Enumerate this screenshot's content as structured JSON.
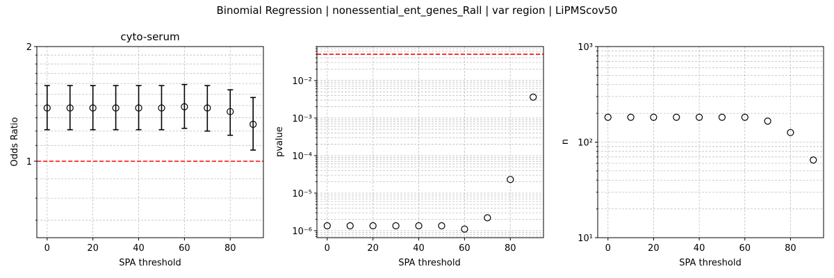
{
  "figure": {
    "suptitle": "Binomial Regression | nonessential_ent_genes_Rall | var region | LiPMScov50"
  },
  "chart_data": [
    {
      "type": "scatter",
      "title": "cyto-serum",
      "xlabel": "SPA threshold",
      "ylabel": "Odds Ratio",
      "yscale": "log",
      "xlim": [
        -4.5,
        94.5
      ],
      "ylim": [
        0.63,
        2.0
      ],
      "xticks": [
        0,
        20,
        40,
        60,
        80
      ],
      "yticks": [
        {
          "value": 1,
          "label": "1"
        },
        {
          "value": 2,
          "label": "2"
        }
      ],
      "yminor": [
        0.7,
        0.8,
        0.9,
        1.1,
        1.2,
        1.3,
        1.4,
        1.5,
        1.6,
        1.7,
        1.8,
        1.9
      ],
      "grid": true,
      "refline": {
        "y": 1,
        "color": "#ff0000"
      },
      "x": [
        0,
        10,
        20,
        30,
        40,
        50,
        60,
        70,
        80,
        90
      ],
      "y": [
        1.38,
        1.38,
        1.38,
        1.38,
        1.38,
        1.38,
        1.39,
        1.38,
        1.35,
        1.25
      ],
      "err_low": [
        1.21,
        1.21,
        1.21,
        1.21,
        1.21,
        1.21,
        1.22,
        1.2,
        1.17,
        1.07
      ],
      "err_high": [
        1.58,
        1.58,
        1.58,
        1.58,
        1.58,
        1.58,
        1.59,
        1.58,
        1.54,
        1.47
      ]
    },
    {
      "type": "scatter",
      "title": "",
      "xlabel": "SPA threshold",
      "ylabel": "pvalue",
      "yscale": "log",
      "xlim": [
        -4.5,
        94.5
      ],
      "ylim": [
        6.5e-07,
        0.08
      ],
      "xticks": [
        0,
        20,
        40,
        60,
        80
      ],
      "ytick_exponents": [
        -6,
        -5,
        -4,
        -3,
        -2
      ],
      "ytick_base": "10",
      "grid": true,
      "refline": {
        "y": 0.05,
        "color": "#ff0000"
      },
      "x": [
        0,
        10,
        20,
        30,
        40,
        50,
        60,
        70,
        80,
        90
      ],
      "y": [
        1.35e-06,
        1.35e-06,
        1.35e-06,
        1.35e-06,
        1.35e-06,
        1.35e-06,
        1.1e-06,
        2.2e-06,
        2.3e-05,
        0.0036
      ]
    },
    {
      "type": "scatter",
      "title": "",
      "xlabel": "SPA threshold",
      "ylabel": "n",
      "yscale": "log",
      "xlim": [
        -4.5,
        94.5
      ],
      "ylim": [
        10,
        1000
      ],
      "xticks": [
        0,
        20,
        40,
        60,
        80
      ],
      "ytick_exponents": [
        1,
        2,
        3
      ],
      "ytick_base": "10",
      "grid": true,
      "x": [
        0,
        10,
        20,
        30,
        40,
        50,
        60,
        70,
        80,
        90
      ],
      "y": [
        182,
        182,
        182,
        182,
        182,
        182,
        182,
        166,
        126,
        65
      ]
    }
  ]
}
